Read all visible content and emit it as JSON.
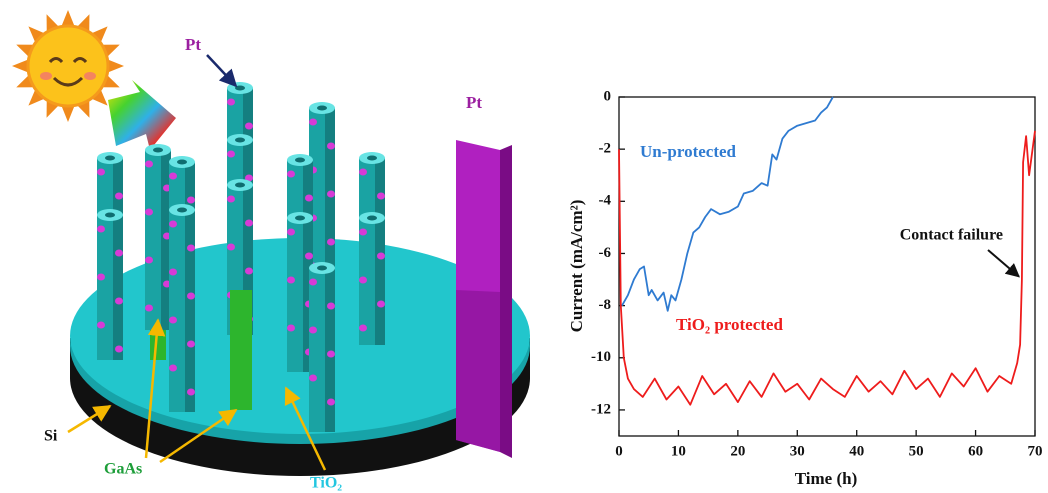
{
  "diagram": {
    "pt_nanoparticles": "Pt",
    "pt_electrode": "Pt",
    "si": "Si",
    "gaas": "GaAs",
    "tio2": "TiO₂"
  },
  "chart_data": {
    "type": "line",
    "xlabel": "Time (h)",
    "ylabel": "Current (mA/cm²)",
    "xlim": [
      0,
      70
    ],
    "xticks": [
      0,
      10,
      20,
      30,
      40,
      50,
      60,
      70
    ],
    "ylim": [
      -13,
      0
    ],
    "yticks": [
      0,
      -2,
      -4,
      -6,
      -8,
      -10,
      -12
    ],
    "annotation": "Contact failure",
    "series": [
      {
        "name": "Un-protected",
        "color": "#2f7bd1",
        "x": [
          0.5,
          1.5,
          2.5,
          3.5,
          4.2,
          5,
          5.5,
          6.5,
          7.5,
          8.2,
          8.8,
          9.5,
          10.5,
          11.5,
          12.5,
          13.5,
          14.5,
          15.5,
          17,
          18.5,
          20,
          21,
          22.5,
          24,
          25,
          25.8,
          26.5,
          27.5,
          28.5,
          30,
          31.5,
          33,
          34,
          35,
          36
        ],
        "values": [
          -8,
          -7.6,
          -7,
          -6.6,
          -6.5,
          -7.6,
          -7.4,
          -7.8,
          -7.5,
          -8.2,
          -7.6,
          -7.8,
          -7,
          -6,
          -5.2,
          -5,
          -4.6,
          -4.3,
          -4.5,
          -4.4,
          -4.2,
          -3.7,
          -3.6,
          -3.3,
          -3.4,
          -2.2,
          -2.4,
          -1.6,
          -1.3,
          -1.1,
          -1.0,
          -0.9,
          -0.6,
          -0.4,
          0
        ]
      },
      {
        "name": "TiO₂ protected",
        "color": "#ee1c1c",
        "x": [
          0,
          0.3,
          0.8,
          1.5,
          2.5,
          4,
          6,
          8,
          10,
          12,
          14,
          16,
          18,
          20,
          22,
          24,
          26,
          28,
          30,
          32,
          34,
          36,
          38,
          40,
          42,
          44,
          46,
          48,
          50,
          52,
          54,
          56,
          58,
          60,
          62,
          64,
          66,
          67,
          67.5,
          67.8,
          68,
          68.5,
          69,
          70
        ],
        "values": [
          -2,
          -8,
          -10,
          -10.8,
          -11.2,
          -11.5,
          -10.8,
          -11.6,
          -11.1,
          -11.8,
          -10.7,
          -11.4,
          -11.0,
          -11.7,
          -10.9,
          -11.5,
          -10.6,
          -11.3,
          -11.0,
          -11.6,
          -10.8,
          -11.2,
          -11.5,
          -10.7,
          -11.3,
          -10.9,
          -11.4,
          -10.5,
          -11.2,
          -10.8,
          -11.5,
          -10.6,
          -11.1,
          -10.4,
          -11.3,
          -10.7,
          -11.0,
          -10.2,
          -9.5,
          -7,
          -2.5,
          -1.5,
          -3,
          -1.3
        ]
      }
    ]
  }
}
